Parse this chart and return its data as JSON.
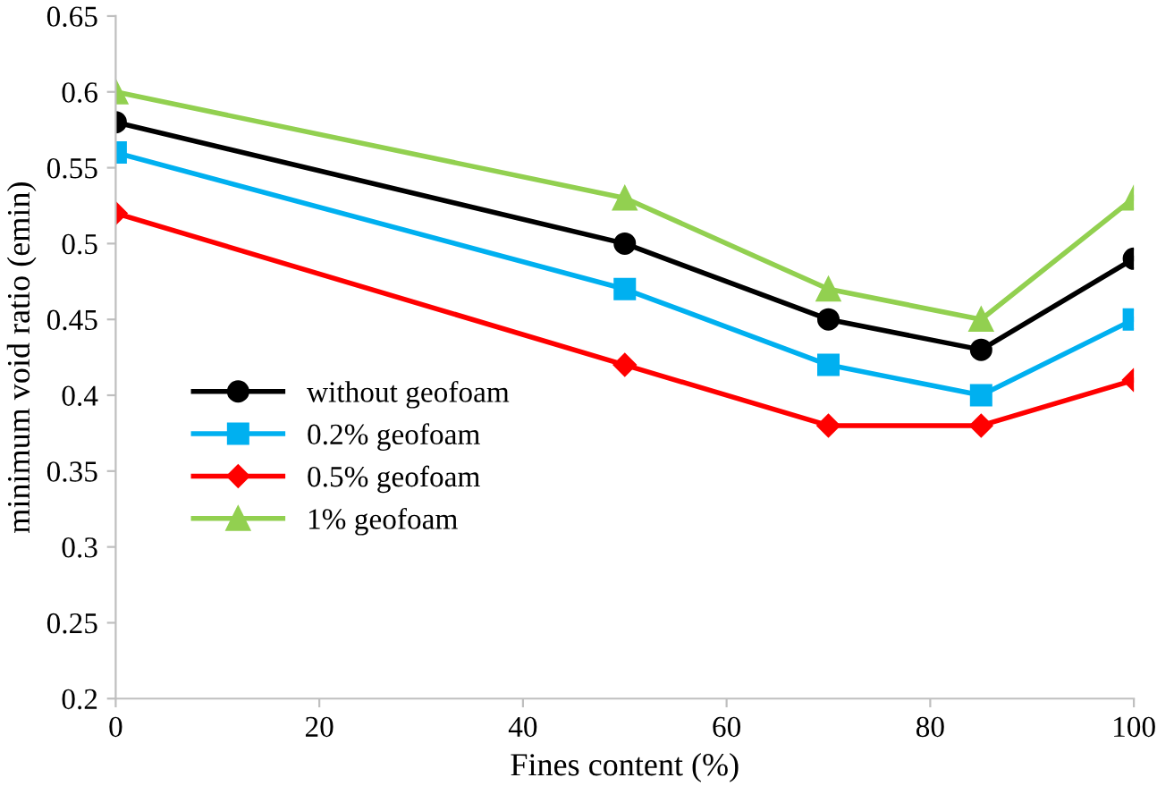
{
  "chart_data": {
    "type": "line",
    "xlabel": "Fines content (%)",
    "ylabel": "minimum void ratio (emin)",
    "x": [
      0,
      50,
      70,
      85,
      100
    ],
    "series": [
      {
        "name": "without geofoam",
        "color": "#000000",
        "marker": "circle",
        "values": [
          0.58,
          0.5,
          0.45,
          0.43,
          0.49
        ]
      },
      {
        "name": "0.2% geofoam",
        "color": "#00b0f0",
        "marker": "square",
        "values": [
          0.56,
          0.47,
          0.42,
          0.4,
          0.45
        ]
      },
      {
        "name": "0.5% geofoam",
        "color": "#ff0000",
        "marker": "diamond",
        "values": [
          0.52,
          0.42,
          0.38,
          0.38,
          0.41
        ]
      },
      {
        "name": "1% geofoam",
        "color": "#92d050",
        "marker": "triangle",
        "values": [
          0.6,
          0.53,
          0.47,
          0.45,
          0.53
        ]
      }
    ],
    "xlim": [
      0,
      100
    ],
    "xticks": [
      0,
      20,
      40,
      60,
      80,
      100
    ],
    "ylim": [
      0.2,
      0.65
    ],
    "yticks": [
      0.2,
      0.25,
      0.3,
      0.35,
      0.4,
      0.45,
      0.5,
      0.55,
      0.6,
      0.65
    ],
    "grid": false,
    "legend": "lower left",
    "line_style": "solid"
  }
}
